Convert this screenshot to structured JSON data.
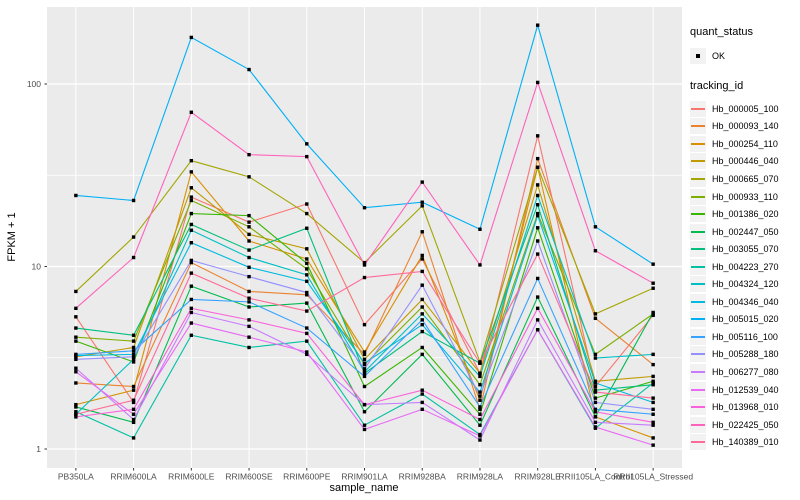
{
  "figure": {
    "panel_background": "#EBEBEB",
    "grid_color": "#FFFFFF",
    "tick_color": "#333333",
    "tick_text_color": "#4D4D4D",
    "point_color": "#000000"
  },
  "chart_data": {
    "type": "line",
    "title": "",
    "xlabel": "sample_name",
    "ylabel": "FPKM + 1",
    "y_scale": "log10",
    "y_ticks": [
      1,
      10,
      100
    ],
    "y_minor_ticks": [
      3.1623,
      31.623
    ],
    "ylim": [
      0.7,
      265
    ],
    "grid": "on",
    "legend_position": "right",
    "categories": [
      "PB350LA",
      "RRIM600LA",
      "RRIM600LE",
      "RRIM600SE",
      "RRIM600PE",
      "RRIM901LA",
      "RRIM928BA",
      "RRIM928LA",
      "RRIM928LE",
      "RRII105LA_Control",
      "RRII105LA_Stressed"
    ],
    "legend": {
      "quant_status_title": "quant_status",
      "quant_status_items": [
        {
          "label": "OK",
          "symbol": "black-square-point"
        }
      ],
      "tracking_id_title": "tracking_id"
    },
    "series": [
      {
        "name": "Hb_000005_100",
        "color": "#F8766D",
        "values": [
          5.3,
          1.8,
          24,
          17.5,
          22,
          4.8,
          11,
          2.6,
          52,
          2.2,
          5.4
        ]
      },
      {
        "name": "Hb_000093_140",
        "color": "#EA8331",
        "values": [
          2.3,
          2.2,
          10.5,
          7.3,
          7,
          3.3,
          15.5,
          1.65,
          39,
          5.2,
          2.9
        ]
      },
      {
        "name": "Hb_000254_110",
        "color": "#D89000",
        "values": [
          1.75,
          2.1,
          33,
          13.8,
          11,
          3.4,
          11.5,
          1.85,
          35,
          1.5,
          1.15
        ]
      },
      {
        "name": "Hb_000446_040",
        "color": "#C09B00",
        "values": [
          3.2,
          3.6,
          27,
          15,
          12.5,
          3.1,
          6.6,
          2.6,
          28,
          2.35,
          2.5
        ]
      },
      {
        "name": "Hb_000665_070",
        "color": "#A3A500",
        "values": [
          7.3,
          14.5,
          38,
          31,
          19.5,
          10.5,
          21.5,
          3,
          35,
          5.5,
          7.6
        ]
      },
      {
        "name": "Hb_000933_110",
        "color": "#7CAE00",
        "values": [
          4.1,
          3.9,
          23,
          16.5,
          9.7,
          2.9,
          6,
          2.25,
          19.5,
          3.3,
          5.5
        ]
      },
      {
        "name": "Hb_001386_020",
        "color": "#39B600",
        "values": [
          3.9,
          3,
          19.5,
          19,
          10.4,
          2.2,
          3.6,
          1.55,
          16.3,
          1.9,
          2.35
        ]
      },
      {
        "name": "Hb_002447_050",
        "color": "#00BB4E",
        "values": [
          1.7,
          1.4,
          7.8,
          6,
          6.3,
          1.6,
          3.3,
          1.35,
          6.8,
          1.5,
          5.6
        ]
      },
      {
        "name": "Hb_003055_070",
        "color": "#00BF7D",
        "values": [
          4.6,
          4.2,
          17,
          12.3,
          16.2,
          2.6,
          4.4,
          2.95,
          21.8,
          2.1,
          2.25
        ]
      },
      {
        "name": "Hb_004223_270",
        "color": "#00C1A3",
        "values": [
          1.6,
          1.15,
          4.2,
          3.6,
          3.9,
          1.35,
          2,
          1.2,
          4.5,
          1.3,
          2.3
        ]
      },
      {
        "name": "Hb_004324_120",
        "color": "#00BFC4",
        "values": [
          1.55,
          3.1,
          15.8,
          11.2,
          9,
          2.65,
          5.5,
          2.5,
          24.5,
          3.15,
          3.3
        ]
      },
      {
        "name": "Hb_004346_040",
        "color": "#00BAE0",
        "values": [
          3.25,
          3.3,
          13.5,
          9.9,
          8.3,
          2.95,
          4.8,
          2.05,
          19,
          2.3,
          1.8
        ]
      },
      {
        "name": "Hb_005015_020",
        "color": "#00B0F6",
        "values": [
          24.5,
          23,
          180,
          120,
          47,
          21,
          22.5,
          16,
          210,
          16.5,
          10.3
        ]
      },
      {
        "name": "Hb_005116_100",
        "color": "#35A2FF",
        "values": [
          3.3,
          3.45,
          6.6,
          6.4,
          4.6,
          2.5,
          5.1,
          1.7,
          8.6,
          1.65,
          1.55
        ]
      },
      {
        "name": "Hb_005288_180",
        "color": "#9590FF",
        "values": [
          3.1,
          3.2,
          10.8,
          8.8,
          7.2,
          2.75,
          7.9,
          1.95,
          13.8,
          1.8,
          1.65
        ]
      },
      {
        "name": "Hb_006277_080",
        "color": "#C77CFF",
        "values": [
          2.77,
          1.45,
          5.6,
          4.7,
          3.3,
          1.75,
          1.8,
          1.12,
          5.1,
          1.4,
          1.35
        ]
      },
      {
        "name": "Hb_012539_040",
        "color": "#E76BF3",
        "values": [
          2.65,
          1.55,
          4.9,
          4.1,
          3.4,
          1.28,
          1.65,
          1.18,
          4.5,
          1.32,
          1.05
        ]
      },
      {
        "name": "Hb_013968_010",
        "color": "#FA62DB",
        "values": [
          1.5,
          1.65,
          5.9,
          5.1,
          4.3,
          1.75,
          2.1,
          1.45,
          5.9,
          1.6,
          1.4
        ]
      },
      {
        "name": "Hb_022425_050",
        "color": "#FF62BC",
        "values": [
          5.9,
          11.2,
          70,
          41,
          40,
          10.2,
          29,
          10.2,
          102,
          12.2,
          8.1
        ]
      },
      {
        "name": "Hb_140389_010",
        "color": "#FF6A98",
        "values": [
          1.55,
          1.85,
          9.2,
          6.7,
          5.7,
          8.7,
          9.4,
          2.95,
          11.7,
          2.05,
          1.9
        ]
      }
    ]
  }
}
